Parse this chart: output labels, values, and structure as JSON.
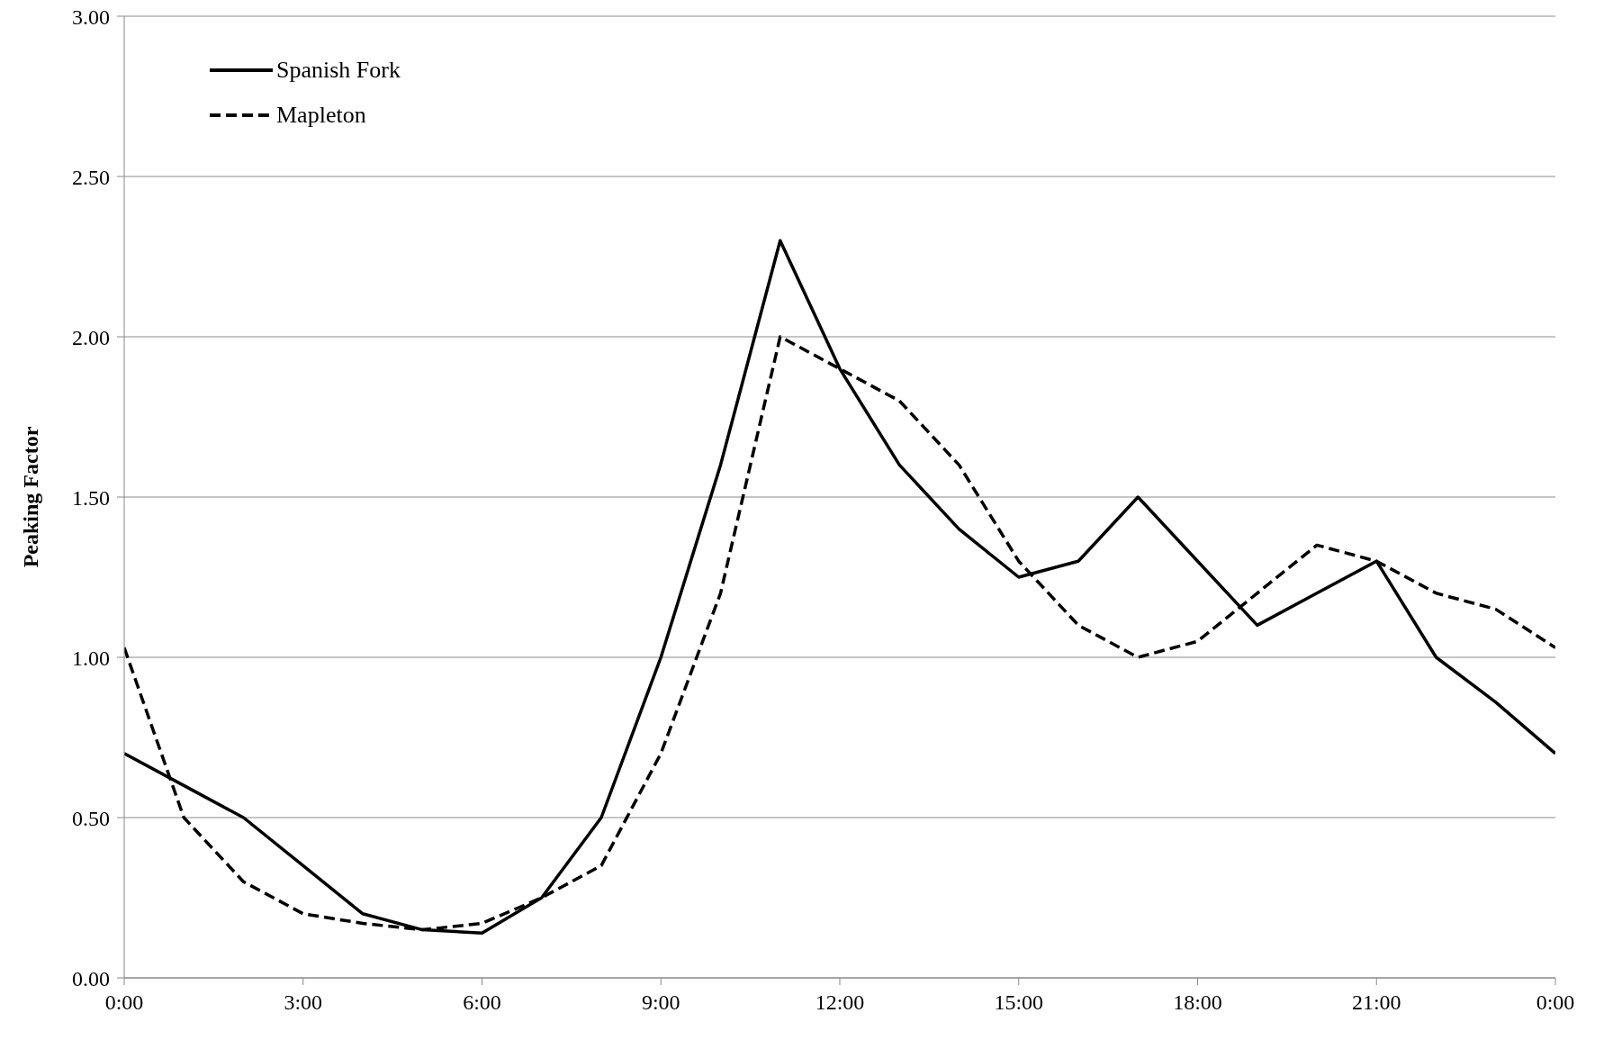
{
  "chart_data": {
    "type": "line",
    "ylabel": "Peaking Factor",
    "x": [
      0,
      1,
      2,
      3,
      4,
      5,
      6,
      7,
      8,
      9,
      10,
      11,
      12,
      13,
      14,
      15,
      16,
      17,
      18,
      19,
      20,
      21,
      22,
      23,
      24
    ],
    "series": [
      {
        "name": "Spanish Fork",
        "color": "#000000",
        "line_style": "solid",
        "values": [
          0.7,
          0.6,
          0.5,
          0.35,
          0.2,
          0.15,
          0.14,
          0.25,
          0.5,
          1.0,
          1.6,
          2.3,
          1.9,
          1.6,
          1.4,
          1.25,
          1.3,
          1.5,
          1.3,
          1.1,
          1.2,
          1.3,
          1.0,
          0.86,
          0.7
        ]
      },
      {
        "name": "Mapleton",
        "color": "#000000",
        "line_style": "dashed",
        "values": [
          1.03,
          0.5,
          0.3,
          0.2,
          0.17,
          0.15,
          0.17,
          0.25,
          0.35,
          0.7,
          1.2,
          2.0,
          1.9,
          1.8,
          1.6,
          1.3,
          1.1,
          1.0,
          1.05,
          1.2,
          1.35,
          1.3,
          1.2,
          1.15,
          1.03
        ]
      }
    ],
    "xlim": [
      0,
      24
    ],
    "xticks": [
      {
        "value": 0,
        "label": "0:00"
      },
      {
        "value": 3,
        "label": "3:00"
      },
      {
        "value": 6,
        "label": "6:00"
      },
      {
        "value": 9,
        "label": "9:00"
      },
      {
        "value": 12,
        "label": "12:00"
      },
      {
        "value": 15,
        "label": "15:00"
      },
      {
        "value": 18,
        "label": "18:00"
      },
      {
        "value": 21,
        "label": "21:00"
      },
      {
        "value": 24,
        "label": "0:00"
      }
    ],
    "ylim": [
      0,
      3
    ],
    "yticks": [
      {
        "value": 0,
        "label": "0.00"
      },
      {
        "value": 0.5,
        "label": "0.50"
      },
      {
        "value": 1,
        "label": "1.00"
      },
      {
        "value": 1.5,
        "label": "1.50"
      },
      {
        "value": 2,
        "label": "2.00"
      },
      {
        "value": 2.5,
        "label": "2.50"
      },
      {
        "value": 3,
        "label": "3.00"
      }
    ],
    "grid": "y",
    "legend": "top left",
    "marker": "none"
  }
}
